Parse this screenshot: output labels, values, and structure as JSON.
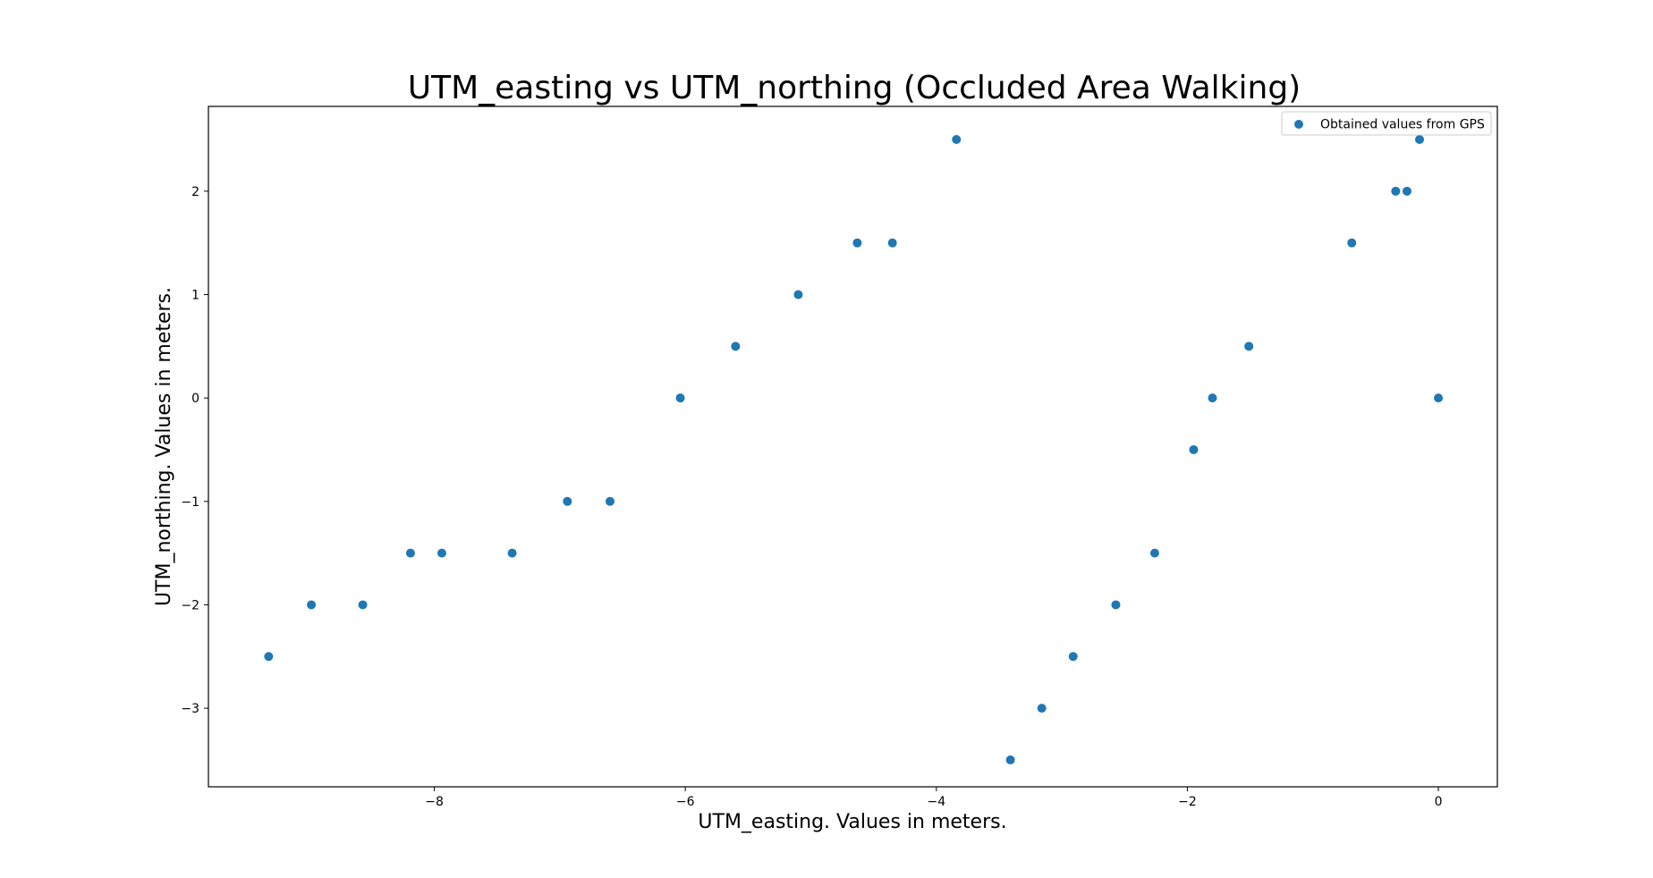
{
  "chart_data": {
    "type": "scatter",
    "title": "UTM_easting vs UTM_northing (Occluded Area Walking)",
    "xlabel": "UTM_easting. Values in meters.",
    "ylabel": "UTM_northing. Values in meters.",
    "xlim": [
      -9.8,
      0.47
    ],
    "ylim": [
      -3.76,
      2.82
    ],
    "xticks": [
      -8,
      -6,
      -4,
      -2,
      0
    ],
    "xtick_labels": [
      "−8",
      "−6",
      "−4",
      "−2",
      "0"
    ],
    "yticks": [
      -3,
      -2,
      -1,
      0,
      1,
      2
    ],
    "ytick_labels": [
      "−3",
      "−2",
      "−1",
      "0",
      "1",
      "2"
    ],
    "grid": false,
    "legend_position": "top-right",
    "colors": {
      "series": "#1f77b4",
      "axes": "#000000",
      "background": "#ffffff"
    },
    "series": [
      {
        "name": "Obtained values from GPS",
        "points": [
          {
            "x": -9.32,
            "y": -2.5
          },
          {
            "x": -8.98,
            "y": -2.0
          },
          {
            "x": -8.57,
            "y": -2.0
          },
          {
            "x": -8.19,
            "y": -1.5
          },
          {
            "x": -7.94,
            "y": -1.5
          },
          {
            "x": -7.38,
            "y": -1.5
          },
          {
            "x": -6.94,
            "y": -1.0
          },
          {
            "x": -6.6,
            "y": -1.0
          },
          {
            "x": -6.04,
            "y": 0.0
          },
          {
            "x": -5.6,
            "y": 0.5
          },
          {
            "x": -5.1,
            "y": 1.0
          },
          {
            "x": -4.63,
            "y": 1.5
          },
          {
            "x": -4.35,
            "y": 1.5
          },
          {
            "x": -3.84,
            "y": 2.5
          },
          {
            "x": -3.41,
            "y": -3.5
          },
          {
            "x": -3.16,
            "y": -3.0
          },
          {
            "x": -2.91,
            "y": -2.5
          },
          {
            "x": -2.57,
            "y": -2.0
          },
          {
            "x": -2.26,
            "y": -1.5
          },
          {
            "x": -1.95,
            "y": -0.5
          },
          {
            "x": -1.8,
            "y": 0.0
          },
          {
            "x": -1.51,
            "y": 0.5
          },
          {
            "x": -0.69,
            "y": 1.5
          },
          {
            "x": -0.34,
            "y": 2.0
          },
          {
            "x": -0.25,
            "y": 2.0
          },
          {
            "x": -0.15,
            "y": 2.5
          },
          {
            "x": 0.0,
            "y": 0.0
          }
        ]
      }
    ]
  }
}
